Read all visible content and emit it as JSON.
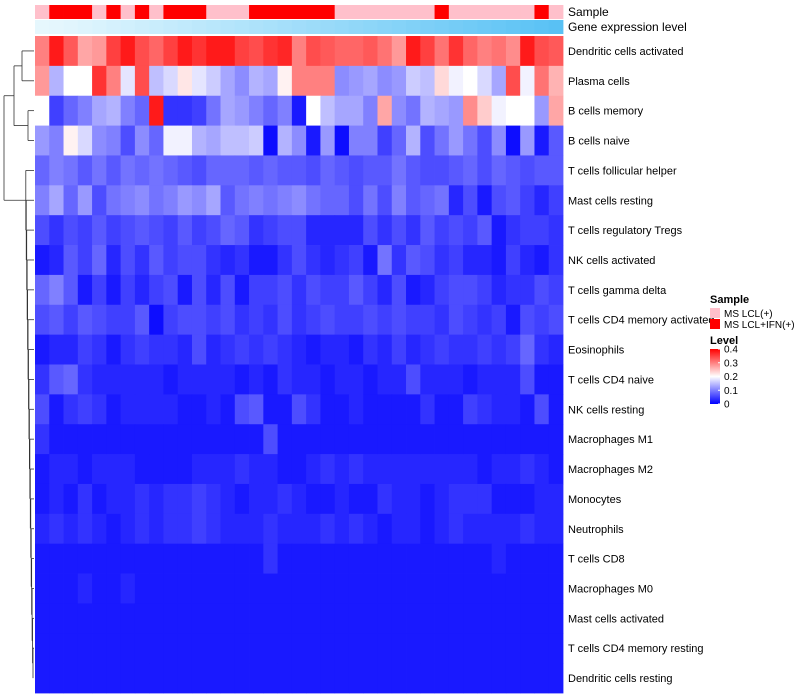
{
  "chart_data": {
    "type": "heatmap",
    "annotations": {
      "sample_label": "Sample",
      "gene_label": "Gene expression level",
      "sample_groups": [
        "L",
        "H",
        "H",
        "H",
        "L",
        "H",
        "L",
        "H",
        "L",
        "H",
        "H",
        "H",
        "L",
        "L",
        "L",
        "H",
        "H",
        "H",
        "H",
        "H",
        "H",
        "L",
        "L",
        "L",
        "L",
        "L",
        "L",
        "L",
        "H",
        "L",
        "L",
        "L",
        "L",
        "L",
        "L",
        "H",
        "L"
      ],
      "gene_colors": [
        "#e6f7fd",
        "#e4f6fd",
        "#e1f5fd",
        "#ddf4fd",
        "#d9f3fd",
        "#d5f1fd",
        "#d1f0fd",
        "#cdeefc",
        "#c9edfc",
        "#c5ebfc",
        "#c1eafc",
        "#bde8fb",
        "#b9e7fb",
        "#b5e5fb",
        "#b1e4fb",
        "#ade2fa",
        "#a9e1fa",
        "#a5dffa",
        "#a1ddfa",
        "#9ddcf9",
        "#99daf9",
        "#95d9f9",
        "#91d7f8",
        "#8dd6f8",
        "#89d4f8",
        "#85d3f8",
        "#81d1f7",
        "#7dcff7",
        "#79cef7",
        "#75ccf6",
        "#71cbf6",
        "#6dc9f6",
        "#69c8f6",
        "#65c6f5",
        "#61c5f5",
        "#5dc3f5",
        "#59c1f4"
      ]
    },
    "rows": [
      "Dendritic cells activated",
      "Plasma cells",
      "B cells memory",
      "B cells naive",
      "T cells follicular helper",
      "Mast cells resting",
      "T cells regulatory  Tregs",
      "NK cells activated",
      "T cells gamma delta",
      "T cells CD4 memory activated",
      "Eosinophils",
      "T cells CD4 naive",
      "NK cells resting",
      "Macrophages M1",
      "Macrophages M2",
      "Monocytes",
      "Neutrophils",
      "T cells CD8",
      "Macrophages M0",
      "Mast cells activated",
      "T cells CD4 memory resting",
      "Dendritic cells resting"
    ],
    "values": [
      [
        0.3,
        0.38,
        0.33,
        0.27,
        0.28,
        0.35,
        0.38,
        0.34,
        0.32,
        0.35,
        0.38,
        0.36,
        0.38,
        0.38,
        0.35,
        0.34,
        0.36,
        0.37,
        0.3,
        0.34,
        0.33,
        0.32,
        0.32,
        0.33,
        0.31,
        0.28,
        0.38,
        0.35,
        0.31,
        0.36,
        0.32,
        0.3,
        0.31,
        0.29,
        0.38,
        0.34,
        0.33
      ],
      [
        0.28,
        0.14,
        0.2,
        0.2,
        0.36,
        0.3,
        0.18,
        0.34,
        0.15,
        0.17,
        0.22,
        0.18,
        0.16,
        0.13,
        0.11,
        0.14,
        0.13,
        0.21,
        0.3,
        0.3,
        0.3,
        0.11,
        0.12,
        0.13,
        0.11,
        0.12,
        0.16,
        0.15,
        0.23,
        0.19,
        0.2,
        0.17,
        0.13,
        0.34,
        0.19,
        0.31,
        0.26
      ],
      [
        0.2,
        0.05,
        0.08,
        0.1,
        0.13,
        0.14,
        0.1,
        0.08,
        0.38,
        0.04,
        0.04,
        0.05,
        0.09,
        0.13,
        0.12,
        0.1,
        0.08,
        0.1,
        0.02,
        0.2,
        0.15,
        0.13,
        0.13,
        0.1,
        0.27,
        0.11,
        0.09,
        0.14,
        0.13,
        0.12,
        0.29,
        0.24,
        0.19,
        0.2,
        0.2,
        0.12,
        0.27
      ],
      [
        0.12,
        0.1,
        0.21,
        0.17,
        0.11,
        0.1,
        0.06,
        0.11,
        0.08,
        0.19,
        0.19,
        0.14,
        0.13,
        0.15,
        0.15,
        0.16,
        0.01,
        0.14,
        0.11,
        0.02,
        0.12,
        0.01,
        0.1,
        0.1,
        0.05,
        0.08,
        0.14,
        0.06,
        0.09,
        0.12,
        0.09,
        0.06,
        0.11,
        0.01,
        0.12,
        0.02,
        0.07
      ],
      [
        0.08,
        0.1,
        0.09,
        0.07,
        0.09,
        0.07,
        0.09,
        0.08,
        0.09,
        0.08,
        0.07,
        0.06,
        0.08,
        0.08,
        0.08,
        0.07,
        0.08,
        0.07,
        0.07,
        0.06,
        0.08,
        0.07,
        0.06,
        0.07,
        0.07,
        0.09,
        0.07,
        0.06,
        0.06,
        0.07,
        0.08,
        0.06,
        0.08,
        0.07,
        0.06,
        0.07,
        0.07
      ],
      [
        0.1,
        0.13,
        0.08,
        0.12,
        0.06,
        0.09,
        0.1,
        0.11,
        0.09,
        0.1,
        0.12,
        0.11,
        0.13,
        0.07,
        0.09,
        0.1,
        0.09,
        0.1,
        0.11,
        0.09,
        0.08,
        0.08,
        0.06,
        0.09,
        0.06,
        0.1,
        0.07,
        0.08,
        0.09,
        0.03,
        0.06,
        0.02,
        0.06,
        0.07,
        0.05,
        0.03,
        0.05
      ],
      [
        0.06,
        0.04,
        0.06,
        0.05,
        0.07,
        0.05,
        0.06,
        0.07,
        0.06,
        0.05,
        0.07,
        0.05,
        0.06,
        0.08,
        0.07,
        0.04,
        0.05,
        0.06,
        0.06,
        0.03,
        0.03,
        0.03,
        0.03,
        0.06,
        0.04,
        0.06,
        0.04,
        0.07,
        0.05,
        0.06,
        0.05,
        0.07,
        0.02,
        0.04,
        0.05,
        0.05,
        0.04
      ],
      [
        0.02,
        0.03,
        0.07,
        0.05,
        0.08,
        0.03,
        0.06,
        0.04,
        0.07,
        0.05,
        0.06,
        0.06,
        0.04,
        0.03,
        0.04,
        0.02,
        0.02,
        0.04,
        0.06,
        0.04,
        0.03,
        0.04,
        0.05,
        0.02,
        0.09,
        0.04,
        0.07,
        0.06,
        0.04,
        0.05,
        0.03,
        0.03,
        0.02,
        0.05,
        0.03,
        0.02,
        0.04
      ],
      [
        0.08,
        0.1,
        0.07,
        0.02,
        0.05,
        0.02,
        0.05,
        0.03,
        0.05,
        0.06,
        0.02,
        0.06,
        0.03,
        0.06,
        0.02,
        0.05,
        0.05,
        0.06,
        0.04,
        0.06,
        0.05,
        0.05,
        0.07,
        0.05,
        0.03,
        0.06,
        0.02,
        0.03,
        0.05,
        0.06,
        0.06,
        0.05,
        0.03,
        0.04,
        0.04,
        0.06,
        0.05
      ],
      [
        0.06,
        0.07,
        0.05,
        0.07,
        0.06,
        0.05,
        0.05,
        0.07,
        0.01,
        0.05,
        0.06,
        0.06,
        0.05,
        0.06,
        0.04,
        0.05,
        0.04,
        0.06,
        0.04,
        0.05,
        0.06,
        0.05,
        0.05,
        0.06,
        0.05,
        0.06,
        0.05,
        0.05,
        0.04,
        0.06,
        0.05,
        0.04,
        0.05,
        0.02,
        0.06,
        0.05,
        0.06
      ],
      [
        0.02,
        0.03,
        0.03,
        0.05,
        0.04,
        0.02,
        0.04,
        0.05,
        0.04,
        0.04,
        0.03,
        0.06,
        0.03,
        0.04,
        0.05,
        0.04,
        0.05,
        0.04,
        0.03,
        0.02,
        0.03,
        0.03,
        0.02,
        0.04,
        0.03,
        0.05,
        0.03,
        0.04,
        0.05,
        0.04,
        0.04,
        0.05,
        0.04,
        0.05,
        0.08,
        0.04,
        0.03
      ],
      [
        0.04,
        0.07,
        0.08,
        0.04,
        0.03,
        0.03,
        0.03,
        0.03,
        0.03,
        0.02,
        0.03,
        0.03,
        0.03,
        0.03,
        0.02,
        0.03,
        0.02,
        0.04,
        0.03,
        0.03,
        0.02,
        0.03,
        0.03,
        0.02,
        0.03,
        0.03,
        0.06,
        0.03,
        0.03,
        0.03,
        0.02,
        0.03,
        0.03,
        0.03,
        0.06,
        0.02,
        0.02
      ],
      [
        0.06,
        0.02,
        0.04,
        0.05,
        0.04,
        0.02,
        0.03,
        0.03,
        0.03,
        0.03,
        0.02,
        0.02,
        0.03,
        0.02,
        0.06,
        0.07,
        0.02,
        0.02,
        0.06,
        0.04,
        0.02,
        0.02,
        0.03,
        0.02,
        0.02,
        0.02,
        0.02,
        0.04,
        0.02,
        0.02,
        0.05,
        0.04,
        0.03,
        0.03,
        0.02,
        0.06,
        0.02
      ],
      [
        0.04,
        0.02,
        0.02,
        0.02,
        0.02,
        0.02,
        0.02,
        0.02,
        0.02,
        0.02,
        0.02,
        0.02,
        0.02,
        0.02,
        0.02,
        0.02,
        0.06,
        0.02,
        0.02,
        0.02,
        0.02,
        0.02,
        0.02,
        0.02,
        0.02,
        0.02,
        0.02,
        0.02,
        0.02,
        0.02,
        0.02,
        0.02,
        0.02,
        0.02,
        0.02,
        0.02,
        0.02
      ],
      [
        0.02,
        0.03,
        0.03,
        0.02,
        0.03,
        0.03,
        0.03,
        0.02,
        0.02,
        0.02,
        0.02,
        0.03,
        0.03,
        0.03,
        0.04,
        0.03,
        0.03,
        0.02,
        0.02,
        0.03,
        0.04,
        0.03,
        0.04,
        0.03,
        0.03,
        0.03,
        0.03,
        0.03,
        0.03,
        0.03,
        0.03,
        0.02,
        0.03,
        0.03,
        0.04,
        0.03,
        0.02
      ],
      [
        0.02,
        0.03,
        0.02,
        0.04,
        0.02,
        0.03,
        0.03,
        0.04,
        0.03,
        0.04,
        0.04,
        0.05,
        0.04,
        0.03,
        0.02,
        0.03,
        0.03,
        0.04,
        0.03,
        0.02,
        0.02,
        0.03,
        0.02,
        0.02,
        0.04,
        0.03,
        0.03,
        0.02,
        0.03,
        0.04,
        0.04,
        0.04,
        0.02,
        0.02,
        0.02,
        0.03,
        0.03
      ],
      [
        0.03,
        0.04,
        0.03,
        0.04,
        0.03,
        0.02,
        0.03,
        0.04,
        0.03,
        0.04,
        0.04,
        0.05,
        0.04,
        0.03,
        0.03,
        0.03,
        0.04,
        0.03,
        0.03,
        0.03,
        0.04,
        0.03,
        0.04,
        0.03,
        0.02,
        0.03,
        0.03,
        0.02,
        0.03,
        0.04,
        0.03,
        0.03,
        0.03,
        0.03,
        0.04,
        0.03,
        0.03
      ],
      [
        0.02,
        0.02,
        0.02,
        0.02,
        0.02,
        0.02,
        0.02,
        0.02,
        0.02,
        0.02,
        0.02,
        0.02,
        0.02,
        0.02,
        0.02,
        0.02,
        0.04,
        0.02,
        0.02,
        0.02,
        0.02,
        0.02,
        0.02,
        0.02,
        0.02,
        0.02,
        0.02,
        0.02,
        0.02,
        0.02,
        0.02,
        0.02,
        0.03,
        0.02,
        0.02,
        0.02,
        0.02
      ],
      [
        0.02,
        0.02,
        0.02,
        0.03,
        0.02,
        0.02,
        0.03,
        0.02,
        0.02,
        0.02,
        0.02,
        0.02,
        0.02,
        0.02,
        0.02,
        0.02,
        0.02,
        0.02,
        0.02,
        0.02,
        0.02,
        0.02,
        0.02,
        0.02,
        0.02,
        0.02,
        0.02,
        0.02,
        0.02,
        0.02,
        0.02,
        0.02,
        0.02,
        0.02,
        0.02,
        0.02,
        0.02
      ],
      [
        0.02,
        0.02,
        0.02,
        0.02,
        0.02,
        0.02,
        0.02,
        0.02,
        0.02,
        0.02,
        0.02,
        0.02,
        0.02,
        0.02,
        0.02,
        0.02,
        0.02,
        0.02,
        0.02,
        0.02,
        0.02,
        0.02,
        0.02,
        0.02,
        0.02,
        0.02,
        0.02,
        0.02,
        0.02,
        0.02,
        0.02,
        0.02,
        0.02,
        0.02,
        0.02,
        0.02,
        0.02
      ],
      [
        0.02,
        0.02,
        0.02,
        0.02,
        0.02,
        0.02,
        0.02,
        0.02,
        0.02,
        0.02,
        0.02,
        0.02,
        0.02,
        0.02,
        0.02,
        0.02,
        0.02,
        0.02,
        0.02,
        0.02,
        0.02,
        0.02,
        0.02,
        0.02,
        0.02,
        0.02,
        0.02,
        0.02,
        0.02,
        0.02,
        0.02,
        0.02,
        0.02,
        0.02,
        0.02,
        0.02,
        0.02
      ],
      [
        0.02,
        0.02,
        0.02,
        0.02,
        0.02,
        0.02,
        0.02,
        0.02,
        0.02,
        0.02,
        0.02,
        0.02,
        0.02,
        0.02,
        0.02,
        0.02,
        0.02,
        0.02,
        0.02,
        0.02,
        0.02,
        0.02,
        0.02,
        0.02,
        0.02,
        0.02,
        0.02,
        0.02,
        0.02,
        0.02,
        0.02,
        0.02,
        0.02,
        0.02,
        0.02,
        0.02,
        0.02
      ]
    ],
    "legend": {
      "sample_title": "Sample",
      "sample_items": [
        {
          "key": "L",
          "label": "MS LCL(+)",
          "color": "#ffc0cb"
        },
        {
          "key": "H",
          "label": "MS LCL+IFN(+)",
          "color": "#ff0000"
        }
      ],
      "level_title": "Level",
      "level_ticks": [
        0.4,
        0.3,
        0.2,
        0.1,
        0
      ],
      "level_tick_labels": [
        "0.4",
        "0.3",
        "0.2",
        "0.1",
        "0"
      ],
      "level_range": [
        0,
        0.4
      ],
      "colors": {
        "low": "#0000ff",
        "mid": "#ffffff",
        "high": "#ff0000"
      }
    }
  }
}
